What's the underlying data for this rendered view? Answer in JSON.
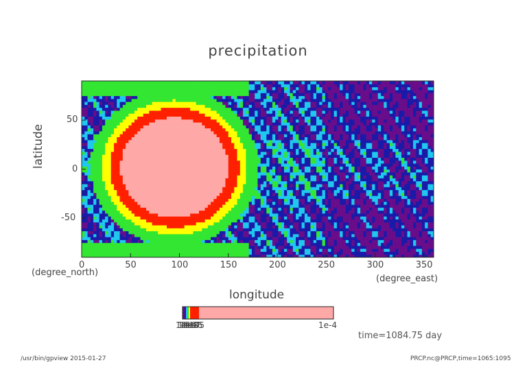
{
  "chart_data": {
    "type": "heatmap",
    "title": "precipitation",
    "xlabel": "longitude",
    "xunit": "(degree_east)",
    "ylabel": "latitude",
    "yunit": "(degree_north)",
    "xlim": [
      0,
      360
    ],
    "ylim": [
      -90,
      90
    ],
    "xticks": [
      "0",
      "50",
      "100",
      "150",
      "200",
      "250",
      "300",
      "350"
    ],
    "yticks": [
      "-50",
      "0",
      "50"
    ],
    "time_label": "time=1084.75 day",
    "colorbar": {
      "labels": [
        "1e-10",
        "1e-9",
        "1e-8",
        "1e-7",
        "1e-6",
        "1e-5",
        "1e-4"
      ],
      "colors": [
        "#6a0d8a",
        "#1a1aa8",
        "#20c8f0",
        "#32e632",
        "#ffff00",
        "#ff2000",
        "#ffa8a8"
      ]
    },
    "features": {
      "heavy_rain_center": {
        "lon": 95,
        "lat": 2,
        "value_range": "1e-5 to 1e-4"
      },
      "dry_region_lon_range": [
        170,
        360
      ]
    }
  },
  "footer": {
    "left": "/usr/bin/gpview  2015-01-27",
    "right": "PRCP.nc@PRCP,time=1065:1095"
  }
}
